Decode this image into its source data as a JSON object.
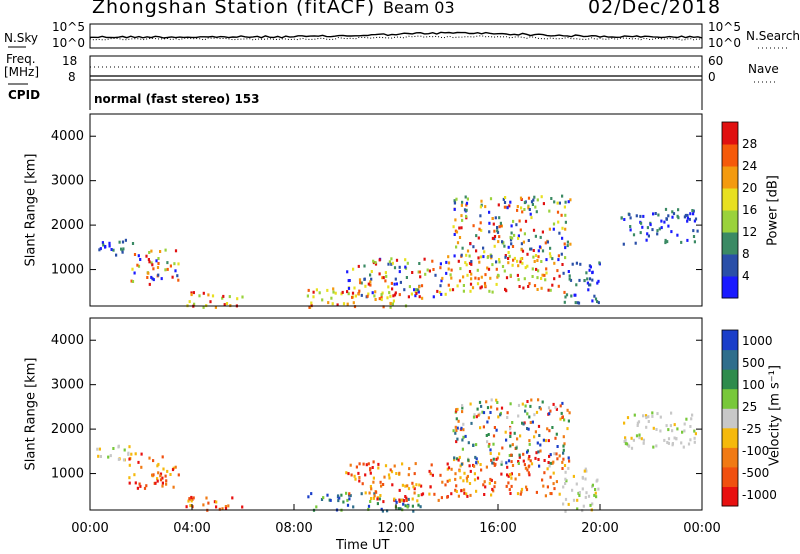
{
  "header": {
    "station": "Zhongshan Station (fitACF)",
    "beam": "Beam 03",
    "date": "02/Dec/2018"
  },
  "top_panels": {
    "nsky_label": "N.Sky",
    "nsky_tick_high": "10^5",
    "nsky_tick_low": "10^0",
    "nsearch_label": "N.Search",
    "nsearch_tick_high": "10^5",
    "nsearch_tick_low": "10^0",
    "freq_label": "Freq.",
    "freq_unit": "[MHz]",
    "freq_tick_high": "18",
    "freq_tick_low": "8",
    "nave_label": "Nave",
    "nave_tick_high": "60",
    "nave_tick_low": "0",
    "cpid_label": "CPID",
    "cpid_value": "normal (fast stereo) 153"
  },
  "chart_data": [
    {
      "type": "heatmap",
      "name": "power",
      "ylabel": "Slant Range [km]",
      "y_ticks": [
        "1000",
        "2000",
        "3000",
        "4000"
      ],
      "ylim": [
        180,
        4500
      ],
      "xlim": [
        0,
        24
      ],
      "colorbar_label": "Power [dB]",
      "colorbar_ticks": [
        "4",
        "8",
        "12",
        "16",
        "20",
        "24",
        "28"
      ],
      "colorscale": [
        "#1a1aff",
        "#2a4fa8",
        "#3b8a64",
        "#9ad23c",
        "#e8e020",
        "#f39a0f",
        "#f55a0a",
        "#e01010"
      ],
      "regions": [
        {
          "t0": 0.0,
          "t1": 1.7,
          "r0": 1300,
          "r1": 1700,
          "level": "low"
        },
        {
          "t0": 1.5,
          "t1": 3.5,
          "r0": 700,
          "r1": 1500,
          "level": "mixed"
        },
        {
          "t0": 3.7,
          "t1": 6.0,
          "r0": 180,
          "r1": 550,
          "level": "high"
        },
        {
          "t0": 8.5,
          "t1": 13.0,
          "r0": 180,
          "r1": 600,
          "level": "high"
        },
        {
          "t0": 10.0,
          "t1": 14.0,
          "r0": 400,
          "r1": 1300,
          "level": "mixed"
        },
        {
          "t0": 14.0,
          "t1": 18.6,
          "r0": 500,
          "r1": 1400,
          "level": "high"
        },
        {
          "t0": 14.2,
          "t1": 18.8,
          "r0": 1200,
          "r1": 2700,
          "level": "mixed"
        },
        {
          "t0": 18.5,
          "t1": 20.0,
          "r0": 180,
          "r1": 1200,
          "level": "low"
        },
        {
          "t0": 20.8,
          "t1": 23.8,
          "r0": 1600,
          "r1": 2400,
          "level": "low"
        }
      ]
    },
    {
      "type": "heatmap",
      "name": "velocity",
      "ylabel": "Slant Range [km]",
      "y_ticks": [
        "1000",
        "2000",
        "3000",
        "4000"
      ],
      "ylim": [
        180,
        4500
      ],
      "xlim": [
        0,
        24
      ],
      "xlabel": "Time UT",
      "x_ticks": [
        "00:00",
        "04:00",
        "08:00",
        "12:00",
        "16:00",
        "20:00",
        "00:00"
      ],
      "colorbar_label": "Velocity [m s⁻¹]",
      "colorbar_ticks": [
        "1000",
        "500",
        "100",
        "25",
        "-25",
        "-100",
        "-500",
        "-1000"
      ],
      "colorscale": [
        "#1a3ec9",
        "#2f6e8c",
        "#2e8b4c",
        "#78c83a",
        "#c8c8c8",
        "#f5b90c",
        "#f07a14",
        "#f05010",
        "#e81010"
      ],
      "regions": [
        {
          "t0": 0.0,
          "t1": 1.7,
          "r0": 1300,
          "r1": 1700,
          "level": "zero"
        },
        {
          "t0": 1.5,
          "t1": 3.5,
          "r0": 700,
          "r1": 1500,
          "level": "negative"
        },
        {
          "t0": 3.7,
          "t1": 6.0,
          "r0": 180,
          "r1": 550,
          "level": "negative"
        },
        {
          "t0": 8.5,
          "t1": 13.0,
          "r0": 180,
          "r1": 600,
          "level": "positive"
        },
        {
          "t0": 10.0,
          "t1": 14.0,
          "r0": 400,
          "r1": 1300,
          "level": "negative"
        },
        {
          "t0": 14.0,
          "t1": 18.6,
          "r0": 500,
          "r1": 1400,
          "level": "negative"
        },
        {
          "t0": 14.2,
          "t1": 18.8,
          "r0": 1200,
          "r1": 2700,
          "level": "mixed"
        },
        {
          "t0": 18.5,
          "t1": 20.0,
          "r0": 180,
          "r1": 1200,
          "level": "zero"
        },
        {
          "t0": 20.8,
          "t1": 23.8,
          "r0": 1600,
          "r1": 2400,
          "level": "zero"
        }
      ]
    }
  ]
}
